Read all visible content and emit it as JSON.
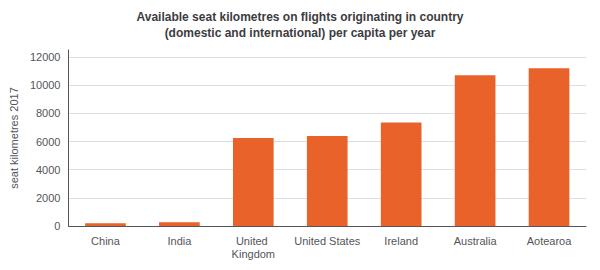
{
  "chart_data": {
    "type": "bar",
    "title": "Available seat kilometres on flights originating in country\n(domestic and international) per capita per year",
    "ylabel": "seat kilometres 2017",
    "categories": [
      "China",
      "India",
      "United Kingdom",
      "United States",
      "Ireland",
      "Australia",
      "Aotearoa"
    ],
    "values": [
      200,
      270,
      6250,
      6400,
      7350,
      10700,
      11200
    ],
    "color": "#E8622A",
    "ylim": [
      0,
      12500
    ],
    "yticks": [
      0,
      2000,
      4000,
      6000,
      8000,
      10000,
      12000
    ],
    "grid": true
  }
}
